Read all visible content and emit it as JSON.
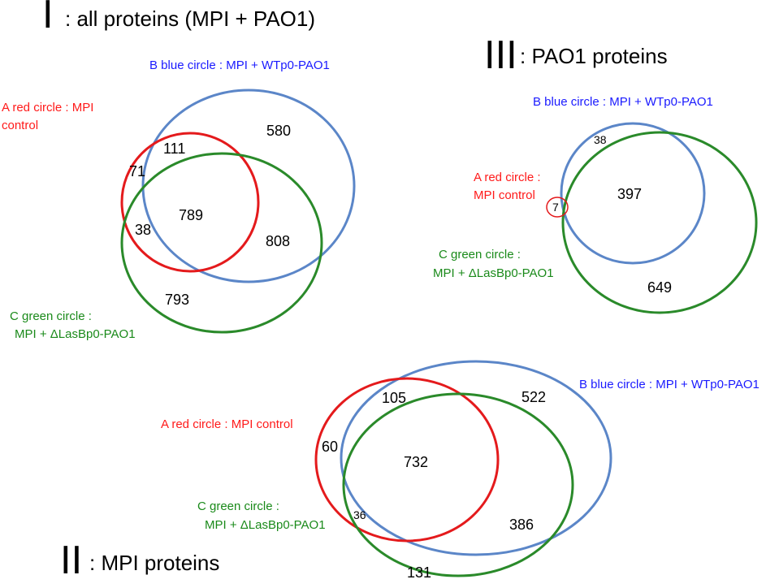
{
  "colors": {
    "red": "#e41a1c",
    "blue": "#5b86c8",
    "green": "#2a8a2a",
    "blue_text": "#1a1aff",
    "red_text": "#ff1a1a",
    "green_text": "#1a8a1a"
  },
  "panel1": {
    "roman": "I",
    "title": ": all proteins (MPI + PAO1)",
    "label_blue": "B blue circle : MPI + WTp0-PAO1",
    "label_red_line1": "A red circle : MPI",
    "label_red_line2": "control",
    "label_green_line1": "C green circle :",
    "label_green_line2": "MPI + ΔLasBp0-PAO1",
    "regions": {
      "blue_only": "580",
      "red_blue": "111",
      "red_only": "71",
      "center": "789",
      "red_green": "38",
      "blue_green": "808",
      "green_only": "793"
    }
  },
  "panel3": {
    "roman": "III",
    "title": ": PAO1 proteins",
    "label_blue": "B blue circle : MPI + WTp0-PAO1",
    "label_red_line1": "A red circle :",
    "label_red_line2": "MPI control",
    "label_green_line1": "C green circle :",
    "label_green_line2": "MPI + ΔLasBp0-PAO1",
    "regions": {
      "blue_only": "38",
      "center": "397",
      "red": "7",
      "green_only": "649"
    }
  },
  "panel2": {
    "roman": "II",
    "title": ": MPI proteins",
    "label_blue": "B blue circle : MPI + WTp0-PAO1",
    "label_red": "A red circle : MPI control",
    "label_green_line1": "C green circle :",
    "label_green_line2": "MPI + ΔLasBp0-PAO1",
    "regions": {
      "red_blue": "105",
      "blue_only": "522",
      "red_only": "60",
      "center": "732",
      "red_green": "36",
      "blue_green": "386",
      "green_only": "131"
    }
  }
}
